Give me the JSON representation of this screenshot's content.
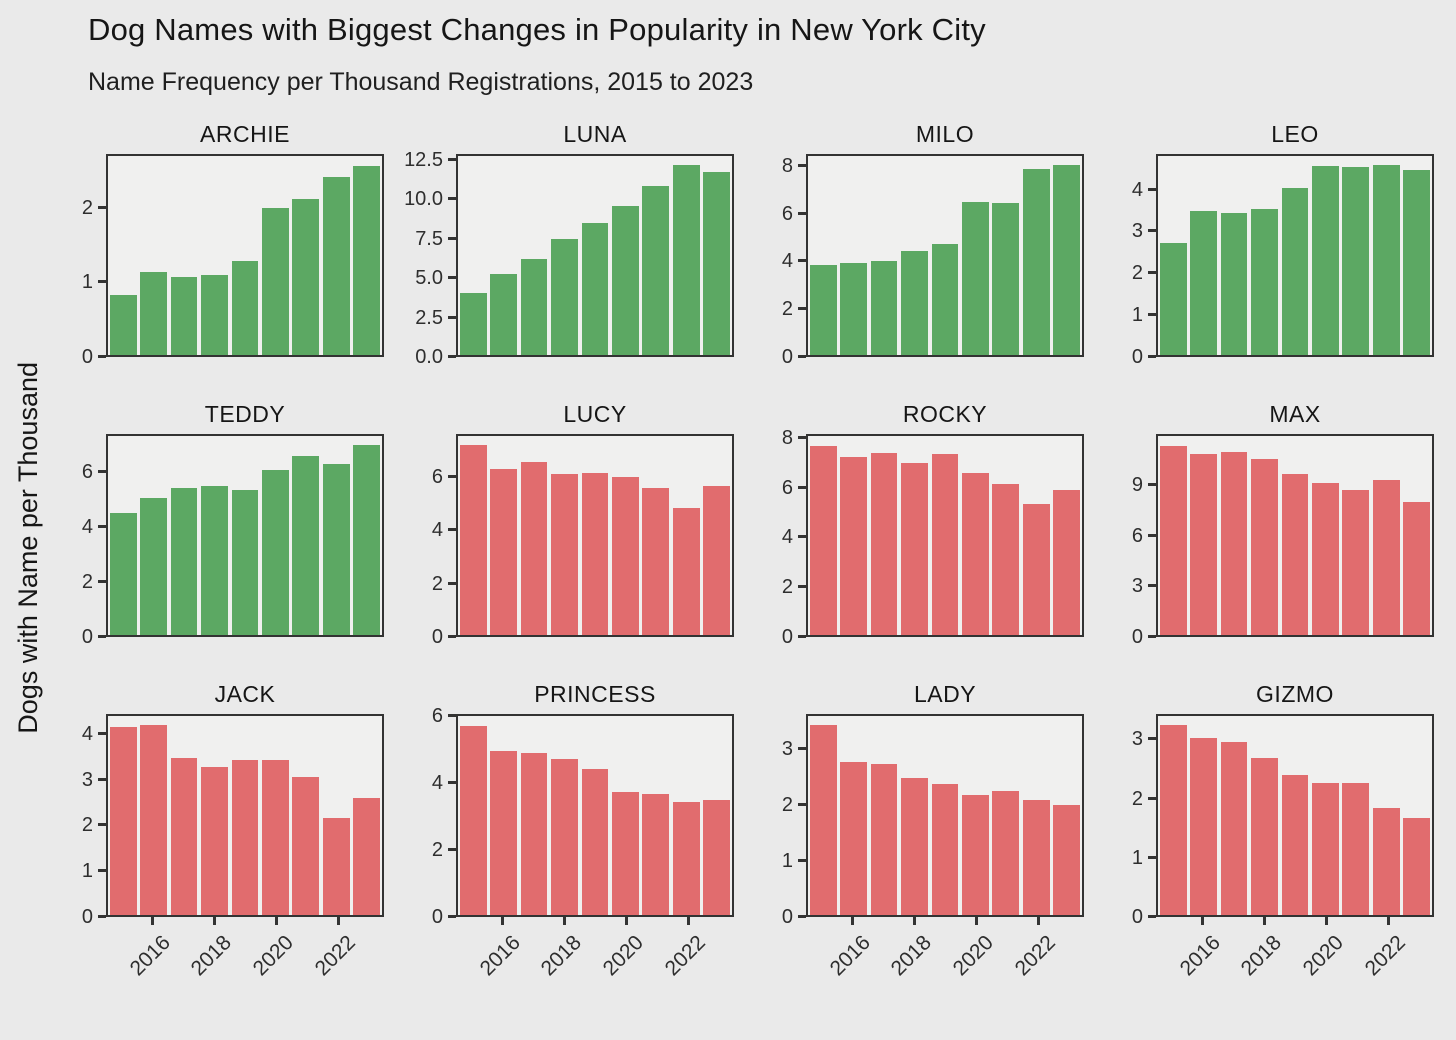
{
  "chart_data": {
    "type": "bar",
    "title": "Dog Names with Biggest Changes in Popularity in New York City",
    "subtitle": "Name Frequency per Thousand Registrations, 2015 to 2023",
    "ylabel": "Dogs with Name per Thousand",
    "x": [
      2015,
      2016,
      2017,
      2018,
      2019,
      2020,
      2021,
      2022,
      2023
    ],
    "x_tick_years": [
      2016,
      2018,
      2020,
      2022
    ],
    "x_tick_labels": [
      "2016",
      "2018",
      "2020",
      "2022"
    ],
    "legend_position": "none",
    "grid": false,
    "colors": {
      "up": "#5ca863",
      "down": "#e16c6e"
    },
    "facets": [
      {
        "name": "ARCHIE",
        "trend": "up",
        "ylim": [
          0,
          2.72
        ],
        "ytick_vals": [
          0,
          1,
          2
        ],
        "ytick_labels": [
          "0",
          "1",
          "2"
        ],
        "values": [
          0.82,
          1.13,
          1.06,
          1.09,
          1.28,
          2.01,
          2.13,
          2.43,
          2.58
        ]
      },
      {
        "name": "LUNA",
        "trend": "up",
        "ylim": [
          0,
          12.85
        ],
        "ytick_vals": [
          0,
          2.5,
          5,
          7.5,
          10,
          12.5
        ],
        "ytick_labels": [
          "0.0",
          "2.5",
          "5.0",
          "7.5",
          "10.0",
          "12.5"
        ],
        "values": [
          4.0,
          5.2,
          6.2,
          7.5,
          8.55,
          9.6,
          10.9,
          12.25,
          11.85
        ]
      },
      {
        "name": "MILO",
        "trend": "up",
        "ylim": [
          0,
          8.5
        ],
        "ytick_vals": [
          0,
          2,
          4,
          6,
          8
        ],
        "ytick_labels": [
          "0",
          "2",
          "4",
          "6",
          "8"
        ],
        "values": [
          3.85,
          3.95,
          4.0,
          4.45,
          4.75,
          6.55,
          6.5,
          7.95,
          8.1
        ]
      },
      {
        "name": "LEO",
        "trend": "up",
        "ylim": [
          0,
          4.85
        ],
        "ytick_vals": [
          0,
          1,
          2,
          3,
          4
        ],
        "ytick_labels": [
          "0",
          "1",
          "2",
          "3",
          "4"
        ],
        "values": [
          2.72,
          3.5,
          3.47,
          3.57,
          4.07,
          4.6,
          4.58,
          4.62,
          4.52
        ]
      },
      {
        "name": "TEDDY",
        "trend": "up",
        "ylim": [
          0,
          7.4
        ],
        "ytick_vals": [
          0,
          2,
          4,
          6
        ],
        "ytick_labels": [
          "0",
          "2",
          "4",
          "6"
        ],
        "values": [
          4.55,
          5.1,
          5.45,
          5.55,
          5.4,
          6.15,
          6.65,
          6.35,
          7.05
        ]
      },
      {
        "name": "LUCY",
        "trend": "down",
        "ylim": [
          0,
          7.6
        ],
        "ytick_vals": [
          0,
          2,
          4,
          6
        ],
        "ytick_labels": [
          "0",
          "2",
          "4",
          "6"
        ],
        "values": [
          7.25,
          6.35,
          6.6,
          6.15,
          6.2,
          6.05,
          5.6,
          4.85,
          5.7
        ]
      },
      {
        "name": "ROCKY",
        "trend": "down",
        "ylim": [
          0,
          8.15
        ],
        "ytick_vals": [
          0,
          2,
          4,
          6,
          8
        ],
        "ytick_labels": [
          "0",
          "2",
          "4",
          "6",
          "8"
        ],
        "values": [
          7.75,
          7.3,
          7.45,
          7.05,
          7.4,
          6.65,
          6.2,
          5.35,
          5.95
        ]
      },
      {
        "name": "MAX",
        "trend": "down",
        "ylim": [
          0,
          12.0
        ],
        "ytick_vals": [
          0,
          3,
          6,
          9
        ],
        "ytick_labels": [
          "0",
          "3",
          "6",
          "9"
        ],
        "values": [
          11.4,
          10.9,
          11.05,
          10.6,
          9.7,
          9.15,
          8.75,
          9.35,
          8.0
        ]
      },
      {
        "name": "JACK",
        "trend": "down",
        "ylim": [
          0,
          4.43
        ],
        "ytick_vals": [
          0,
          1,
          2,
          3,
          4
        ],
        "ytick_labels": [
          "0",
          "1",
          "2",
          "3",
          "4"
        ],
        "values": [
          4.18,
          4.22,
          3.5,
          3.3,
          3.45,
          3.46,
          3.07,
          2.15,
          2.6
        ]
      },
      {
        "name": "PRINCESS",
        "trend": "down",
        "ylim": [
          0,
          6.07
        ],
        "ytick_vals": [
          0,
          2,
          4,
          6
        ],
        "ytick_labels": [
          "0",
          "2",
          "4",
          "6"
        ],
        "values": [
          5.78,
          5.0,
          4.95,
          4.75,
          4.45,
          3.75,
          3.7,
          3.45,
          3.52
        ]
      },
      {
        "name": "LADY",
        "trend": "down",
        "ylim": [
          0,
          3.62
        ],
        "ytick_vals": [
          0,
          1,
          2,
          3
        ],
        "ytick_labels": [
          "0",
          "1",
          "2",
          "3"
        ],
        "values": [
          3.45,
          2.78,
          2.74,
          2.5,
          2.38,
          2.18,
          2.25,
          2.1,
          2.0
        ]
      },
      {
        "name": "GIZMO",
        "trend": "down",
        "ylim": [
          0,
          3.43
        ],
        "ytick_vals": [
          0,
          1,
          2,
          3
        ],
        "ytick_labels": [
          "0",
          "1",
          "2",
          "3"
        ],
        "values": [
          3.27,
          3.05,
          2.98,
          2.7,
          2.42,
          2.28,
          2.28,
          1.85,
          1.68
        ]
      }
    ]
  }
}
